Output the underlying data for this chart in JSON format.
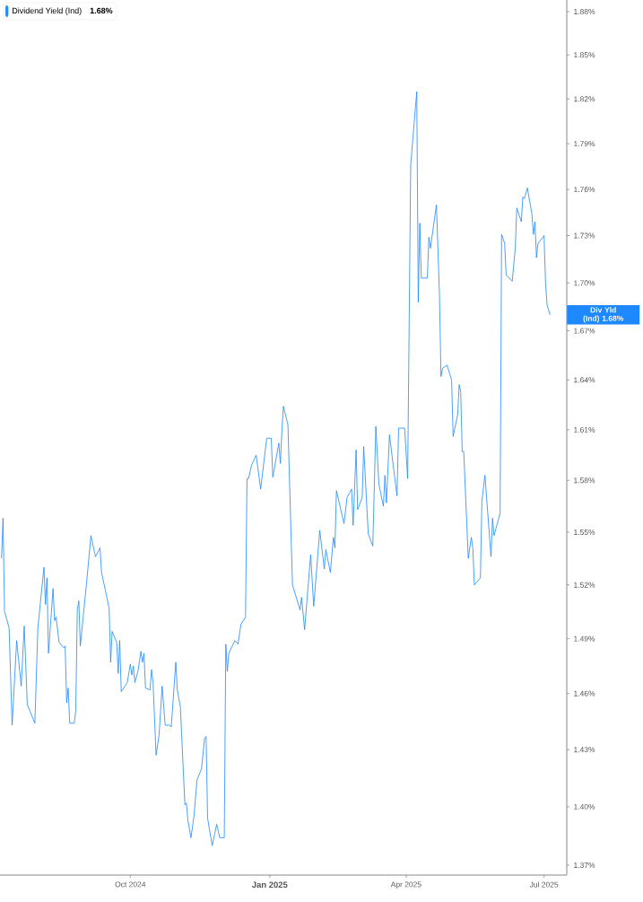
{
  "chart_data": {
    "type": "line",
    "log": true,
    "legend": "top left",
    "annotations": [
      "1.68%",
      "Div Yld (Ind) 1.68%"
    ],
    "xlim": [
      "2024-07-07",
      "2025-07-16"
    ],
    "xticks": [
      {
        "value": "2024-10-01",
        "label": "Oct 2024"
      },
      {
        "value": "2025-01-01",
        "label": "Jan 2025"
      },
      {
        "value": "2025-04-01",
        "label": "Apr 2025"
      },
      {
        "value": "2025-07-01",
        "label": "Jul 2025"
      }
    ],
    "ylim": [
      1.365,
      1.888
    ],
    "yticks": [
      {
        "value": 1.37,
        "label": "1.37%"
      },
      {
        "value": 1.4,
        "label": "1.40%"
      },
      {
        "value": 1.43,
        "label": "1.43%"
      },
      {
        "value": 1.46,
        "label": "1.46%"
      },
      {
        "value": 1.49,
        "label": "1.49%"
      },
      {
        "value": 1.52,
        "label": "1.52%"
      },
      {
        "value": 1.55,
        "label": "1.55%"
      },
      {
        "value": 1.58,
        "label": "1.58%"
      },
      {
        "value": 1.61,
        "label": "1.61%"
      },
      {
        "value": 1.64,
        "label": "1.64%"
      },
      {
        "value": 1.67,
        "label": "1.67%"
      },
      {
        "value": 1.7,
        "label": "1.70%"
      },
      {
        "value": 1.73,
        "label": "1.73%"
      },
      {
        "value": 1.76,
        "label": "1.76%"
      },
      {
        "value": 1.79,
        "label": "1.79%"
      },
      {
        "value": 1.82,
        "label": "1.82%"
      },
      {
        "value": 1.85,
        "label": "1.85%"
      },
      {
        "value": 1.88,
        "label": "1.88%"
      }
    ],
    "series": [
      {
        "name": "Dividend Yield (Ind)",
        "color": "#1e88ff",
        "x": [
          "2024-07-08",
          "2024-07-09",
          "2024-07-10",
          "2024-07-13",
          "2024-07-15",
          "2024-07-18",
          "2024-07-21",
          "2024-07-23",
          "2024-07-25",
          "2024-07-30",
          "2024-08-01",
          "2024-08-05",
          "2024-08-06",
          "2024-08-07",
          "2024-08-08",
          "2024-08-11",
          "2024-08-12",
          "2024-08-13",
          "2024-08-15",
          "2024-08-18",
          "2024-08-19",
          "2024-08-20",
          "2024-08-21",
          "2024-08-22",
          "2024-08-25",
          "2024-08-26",
          "2024-08-27",
          "2024-08-28",
          "2024-08-29",
          "2024-09-02",
          "2024-09-05",
          "2024-09-08",
          "2024-09-11",
          "2024-09-12",
          "2024-09-15",
          "2024-09-17",
          "2024-09-18",
          "2024-09-19",
          "2024-09-22",
          "2024-09-23",
          "2024-09-24",
          "2024-09-25",
          "2024-09-29",
          "2024-10-01",
          "2024-10-02",
          "2024-10-03",
          "2024-10-04",
          "2024-10-06",
          "2024-10-08",
          "2024-10-09",
          "2024-10-10",
          "2024-10-11",
          "2024-10-14",
          "2024-10-15",
          "2024-10-16",
          "2024-10-18",
          "2024-10-20",
          "2024-10-22",
          "2024-10-24",
          "2024-10-27",
          "2024-10-28",
          "2024-10-31",
          "2024-11-01",
          "2024-11-03",
          "2024-11-06",
          "2024-11-07",
          "2024-11-08",
          "2024-11-10",
          "2024-11-12",
          "2024-11-14",
          "2024-11-17",
          "2024-11-19",
          "2024-11-20",
          "2024-11-21",
          "2024-11-24",
          "2024-11-27",
          "2024-11-29",
          "2024-12-02",
          "2024-12-03",
          "2024-12-04",
          "2024-12-05",
          "2024-12-09",
          "2024-12-11",
          "2024-12-13",
          "2024-12-16",
          "2024-12-17",
          "2024-12-18",
          "2024-12-20",
          "2024-12-23",
          "2024-12-26",
          "2024-12-30",
          "2025-01-02",
          "2025-01-03",
          "2025-01-07",
          "2025-01-08",
          "2025-01-09",
          "2025-01-10",
          "2025-01-13",
          "2025-01-16",
          "2025-01-21",
          "2025-01-22",
          "2025-01-24",
          "2025-01-28",
          "2025-01-30",
          "2025-02-03",
          "2025-02-06",
          "2025-02-07",
          "2025-02-10",
          "2025-02-12",
          "2025-02-13",
          "2025-02-14",
          "2025-02-19",
          "2025-02-21",
          "2025-02-24",
          "2025-02-25",
          "2025-02-27",
          "2025-02-28",
          "2025-03-03",
          "2025-03-04",
          "2025-03-07",
          "2025-03-10",
          "2025-03-12",
          "2025-03-14",
          "2025-03-17",
          "2025-03-18",
          "2025-03-19",
          "2025-03-21",
          "2025-03-24",
          "2025-03-26",
          "2025-03-27",
          "2025-03-31",
          "2025-04-02",
          "2025-04-04",
          "2025-04-08",
          "2025-04-09",
          "2025-04-10",
          "2025-04-11",
          "2025-04-15",
          "2025-04-16",
          "2025-04-17",
          "2025-04-21",
          "2025-04-23",
          "2025-04-24",
          "2025-04-25",
          "2025-04-28",
          "2025-05-01",
          "2025-05-02",
          "2025-05-05",
          "2025-05-06",
          "2025-05-07",
          "2025-05-08",
          "2025-05-09",
          "2025-05-12",
          "2025-05-14",
          "2025-05-15",
          "2025-05-16",
          "2025-05-20",
          "2025-05-21",
          "2025-05-23",
          "2025-05-27",
          "2025-05-28",
          "2025-05-29",
          "2025-06-02",
          "2025-06-03",
          "2025-06-05",
          "2025-06-06",
          "2025-06-10",
          "2025-06-12",
          "2025-06-13",
          "2025-06-16",
          "2025-06-17",
          "2025-06-18",
          "2025-06-20",
          "2025-06-23",
          "2025-06-24",
          "2025-06-25",
          "2025-06-26",
          "2025-06-27",
          "2025-07-01",
          "2025-07-02",
          "2025-07-03",
          "2025-07-05"
        ],
        "values": [
          1.535,
          1.558,
          1.505,
          1.496,
          1.443,
          1.489,
          1.464,
          1.497,
          1.454,
          1.444,
          1.496,
          1.53,
          1.509,
          1.524,
          1.482,
          1.518,
          1.5,
          1.502,
          1.488,
          1.485,
          1.486,
          1.455,
          1.463,
          1.444,
          1.444,
          1.451,
          1.506,
          1.511,
          1.486,
          1.52,
          1.548,
          1.536,
          1.541,
          1.527,
          1.515,
          1.507,
          1.477,
          1.494,
          1.488,
          1.471,
          1.489,
          1.461,
          1.466,
          1.476,
          1.47,
          1.475,
          1.466,
          1.472,
          1.483,
          1.477,
          1.482,
          1.463,
          1.462,
          1.473,
          1.466,
          1.427,
          1.438,
          1.464,
          1.443,
          1.443,
          1.442,
          1.477,
          1.462,
          1.453,
          1.401,
          1.402,
          1.393,
          1.384,
          1.395,
          1.414,
          1.42,
          1.436,
          1.437,
          1.394,
          1.38,
          1.391,
          1.384,
          1.384,
          1.487,
          1.472,
          1.482,
          1.489,
          1.487,
          1.498,
          1.502,
          1.581,
          1.581,
          1.589,
          1.595,
          1.575,
          1.605,
          1.605,
          1.582,
          1.602,
          1.59,
          1.609,
          1.624,
          1.613,
          1.52,
          1.506,
          1.513,
          1.495,
          1.537,
          1.508,
          1.551,
          1.529,
          1.54,
          1.527,
          1.547,
          1.541,
          1.574,
          1.555,
          1.57,
          1.575,
          1.554,
          1.598,
          1.563,
          1.57,
          1.6,
          1.549,
          1.542,
          1.612,
          1.578,
          1.565,
          1.583,
          1.567,
          1.607,
          1.585,
          1.571,
          1.611,
          1.611,
          1.581,
          1.776,
          1.825,
          1.688,
          1.738,
          1.703,
          1.703,
          1.729,
          1.722,
          1.75,
          1.692,
          1.642,
          1.647,
          1.649,
          1.64,
          1.606,
          1.619,
          1.637,
          1.633,
          1.597,
          1.597,
          1.535,
          1.547,
          1.541,
          1.52,
          1.524,
          1.568,
          1.583,
          1.536,
          1.558,
          1.548,
          1.561,
          1.731,
          1.725,
          1.705,
          1.701,
          1.722,
          1.748,
          1.739,
          1.755,
          1.754,
          1.761,
          1.744,
          1.731,
          1.739,
          1.716,
          1.725,
          1.73,
          1.7,
          1.686,
          1.68
        ]
      }
    ]
  }
}
